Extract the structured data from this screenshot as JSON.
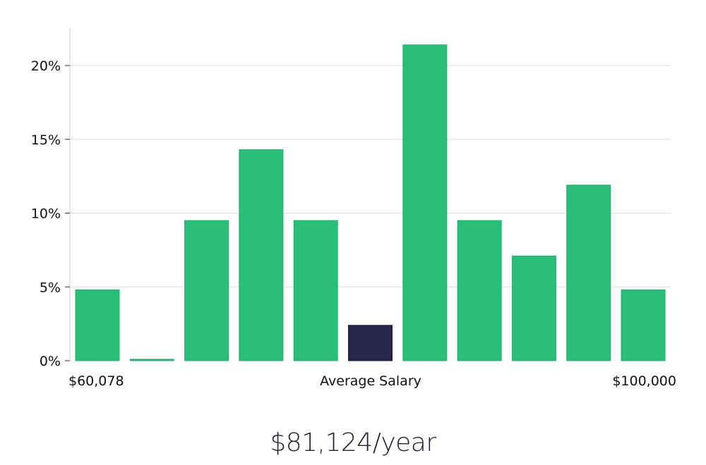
{
  "chart_data": {
    "type": "bar",
    "title": "",
    "xlabel": "Average Salary",
    "ylabel": "",
    "x_min_label": "$60,078",
    "x_max_label": "$100,000",
    "ylim": [
      0,
      22.5
    ],
    "y_ticks": [
      0,
      5,
      10,
      15,
      20
    ],
    "y_tick_labels": [
      "0%",
      "5%",
      "10%",
      "15%",
      "20%"
    ],
    "values": [
      4.8,
      0.1,
      9.5,
      14.3,
      9.5,
      2.4,
      21.4,
      9.5,
      7.1,
      11.9,
      4.8
    ],
    "highlight_index": 5,
    "colors": {
      "bar": "#2abf78",
      "bar_edge": "#22b06c",
      "highlight": "#29264b",
      "grid": "#dddddd",
      "axis": "#cccccc"
    }
  },
  "summary": {
    "salary": "$81,124/year"
  }
}
